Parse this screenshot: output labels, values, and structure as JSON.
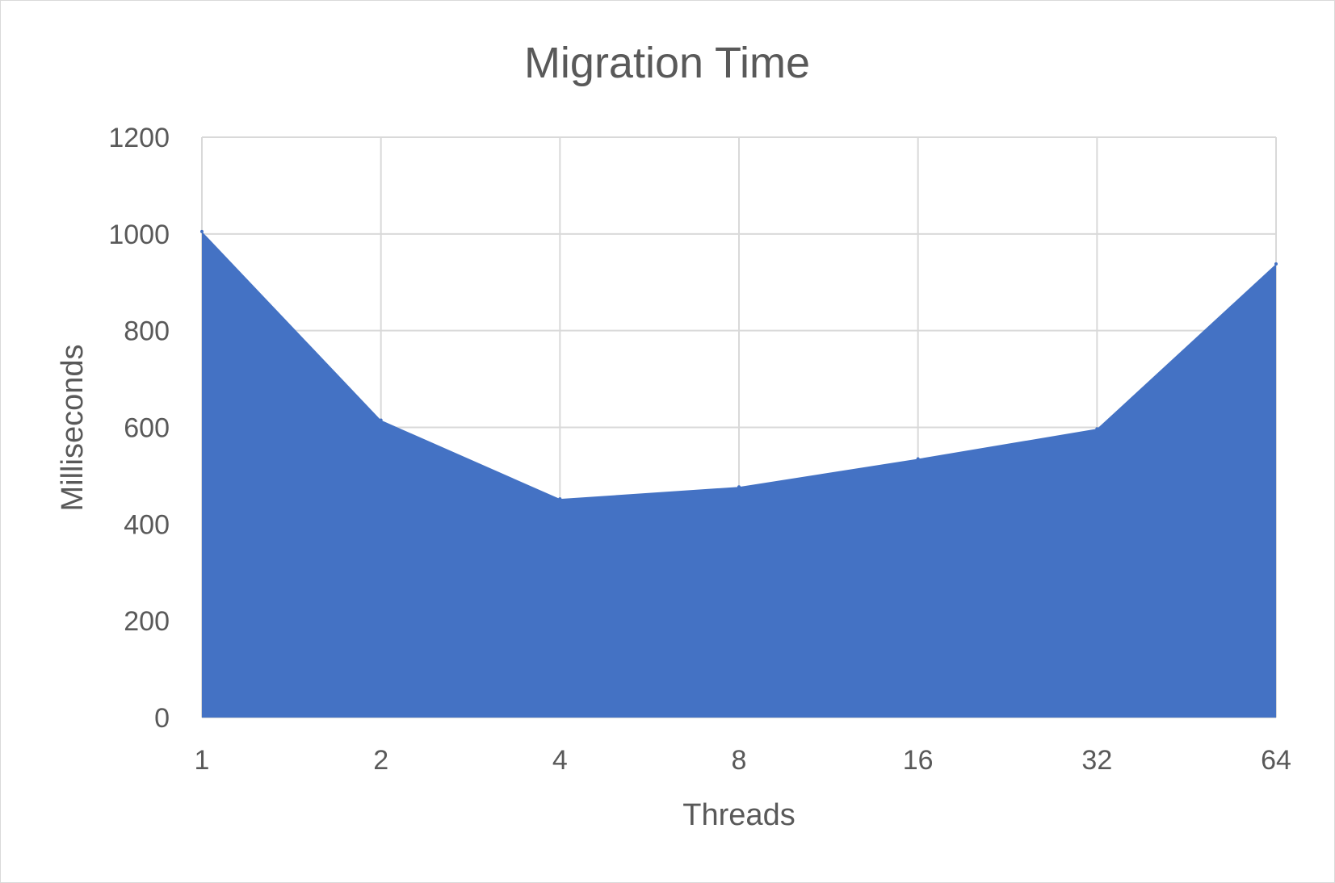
{
  "colors": {
    "area_fill": "#4472c4",
    "gridline": "#d9d9d9",
    "text": "#595959",
    "background": "#ffffff"
  },
  "chart_data": {
    "type": "area",
    "title": "Migration Time",
    "xlabel": "Threads",
    "ylabel": "Milliseconds",
    "categories": [
      "1",
      "2",
      "4",
      "8",
      "16",
      "32",
      "64"
    ],
    "series": [
      {
        "values": [
          1005,
          615,
          452,
          477,
          535,
          597,
          938
        ]
      }
    ],
    "ylim": [
      0,
      1200
    ],
    "yticks": [
      "0",
      "200",
      "400",
      "600",
      "800",
      "1000",
      "1200"
    ],
    "grid": true,
    "legend": "none"
  }
}
